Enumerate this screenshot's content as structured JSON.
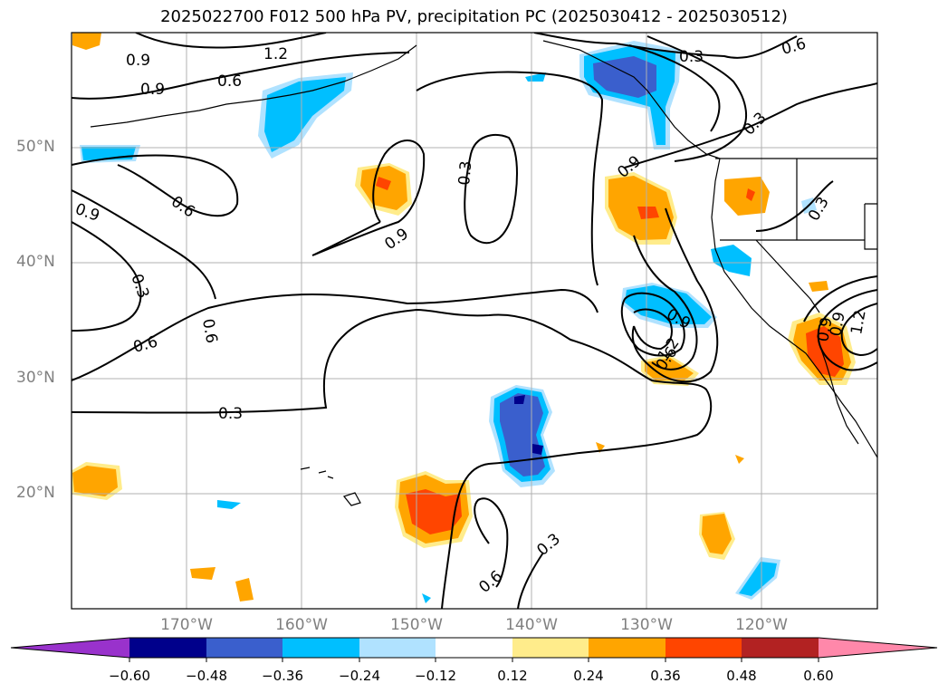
{
  "title": "2025022700 F012 500 hPa PV, precipitation PC (2025030412 - 2025030512)",
  "map": {
    "lat_labels": [
      "50°N",
      "40°N",
      "30°N",
      "20°N"
    ],
    "lon_labels": [
      "170°W",
      "160°W",
      "150°W",
      "140°W",
      "130°W",
      "120°W"
    ],
    "contour_labels": [
      "1.2",
      "0.9",
      "0.9",
      "0.9",
      "0.6",
      "0.3",
      "0.6",
      "0.6",
      "0.3",
      "0.3",
      "0.9",
      "0.9",
      "0.3",
      "0.6",
      "0.3",
      "0.9",
      "0.6",
      "0.6",
      "0.3",
      "1.2",
      "0.9",
      "0.9",
      "1.2",
      "0.6",
      "0.3"
    ],
    "pv_contour_levels": [
      0.3,
      0.6,
      0.9,
      1.2
    ]
  },
  "colorbar": {
    "ticks": [
      "−0.60",
      "−0.48",
      "−0.36",
      "−0.24",
      "−0.12",
      "0.12",
      "0.24",
      "0.36",
      "0.48",
      "0.60"
    ],
    "colors": {
      "lt_neg060": "#9932cc",
      "neg060_neg048": "#00008b",
      "neg048_neg036": "#3a5fcd",
      "neg036_neg024": "#00bfff",
      "neg024_neg012": "#b0e2ff",
      "neg012_012": "#ffffff",
      "p012_024": "#ffec8b",
      "p024_036": "#ffa500",
      "p036_048": "#ff4500",
      "p048_060": "#b22222",
      "gt_060": "#ff88aa"
    }
  }
}
